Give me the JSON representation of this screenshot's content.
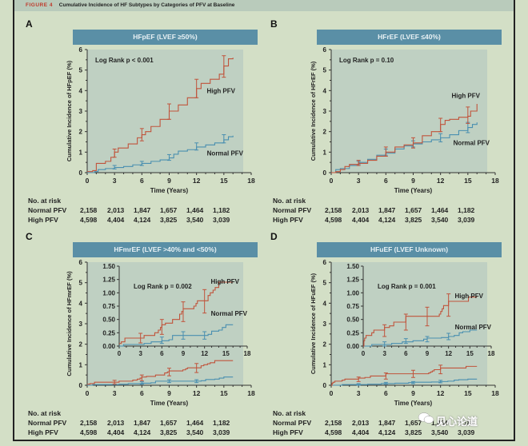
{
  "figure": {
    "label": "FIGURE 4",
    "title": "Cumulative Incidence of HF Subtypes by Categories of PFV at Baseline"
  },
  "colors": {
    "high_pfv": "#c0543c",
    "normal_pfv": "#4a8fb0",
    "plot_bg": "#bfd0c2",
    "title_bar": "#5a8fa6"
  },
  "risk_table": {
    "heading": "No. at risk",
    "times": [
      0,
      3,
      6,
      9,
      12,
      15
    ],
    "rows": [
      {
        "label": "Normal PFV",
        "values": [
          "2,158",
          "2,013",
          "1,847",
          "1,657",
          "1,464",
          "1,182"
        ]
      },
      {
        "label": "High PFV",
        "values": [
          "4,598",
          "4,404",
          "4,124",
          "3,825",
          "3,540",
          "3,039"
        ]
      }
    ]
  },
  "watermark": "见心论道",
  "chart_data": [
    {
      "panel": "A",
      "type": "line",
      "title": "HFpEF (LVEF ≥50%)",
      "xlabel": "Time (Years)",
      "ylabel": "Cumulative Incidence of HFpEF (%)",
      "xlim": [
        0,
        18
      ],
      "ylim": [
        0,
        6
      ],
      "xticks": [
        0,
        3,
        6,
        9,
        12,
        15,
        18
      ],
      "yticks": [
        0,
        1,
        2,
        3,
        4,
        5,
        6
      ],
      "annotation": "Log Rank p < 0.001",
      "labels": {
        "high": "High PFV",
        "normal": "Normal PFV"
      },
      "series": [
        {
          "name": "High PFV",
          "x": [
            0,
            0.6,
            1.0,
            2.0,
            2.6,
            3.0,
            3.4,
            4.5,
            5.5,
            6.0,
            6.4,
            7.0,
            8.0,
            9.0,
            10.0,
            11.0,
            12.0,
            12.5,
            13.5,
            14.5,
            15.0,
            15.5,
            16.0
          ],
          "y": [
            0.05,
            0.1,
            0.45,
            0.55,
            0.75,
            1.0,
            1.2,
            1.4,
            1.7,
            1.85,
            2.0,
            2.25,
            2.6,
            3.0,
            3.3,
            3.65,
            4.1,
            4.35,
            4.55,
            4.8,
            5.2,
            5.55,
            5.6
          ],
          "errors": [
            {
              "x": 3,
              "lo": 0.75,
              "hi": 1.15
            },
            {
              "x": 6,
              "lo": 1.55,
              "hi": 2.15
            },
            {
              "x": 9,
              "lo": 2.6,
              "hi": 3.35
            },
            {
              "x": 12,
              "lo": 3.65,
              "hi": 4.55
            },
            {
              "x": 15,
              "lo": 4.65,
              "hi": 5.7
            }
          ]
        },
        {
          "name": "Normal PFV",
          "x": [
            0,
            0.8,
            1.2,
            2.0,
            3.0,
            4.0,
            5.0,
            6.0,
            7.0,
            8.0,
            9.0,
            9.5,
            10.0,
            11.0,
            12.0,
            13.0,
            14.0,
            15.0,
            15.5,
            16.0
          ],
          "y": [
            0,
            0.05,
            0.15,
            0.2,
            0.25,
            0.3,
            0.38,
            0.45,
            0.55,
            0.62,
            0.72,
            0.9,
            1.05,
            1.12,
            1.25,
            1.35,
            1.45,
            1.6,
            1.75,
            1.8
          ],
          "errors": [
            {
              "x": 3,
              "lo": 0.18,
              "hi": 0.35
            },
            {
              "x": 6,
              "lo": 0.35,
              "hi": 0.55
            },
            {
              "x": 9,
              "lo": 0.6,
              "hi": 0.88
            },
            {
              "x": 12,
              "lo": 1.1,
              "hi": 1.45
            },
            {
              "x": 15,
              "lo": 1.45,
              "hi": 1.85
            }
          ]
        }
      ]
    },
    {
      "panel": "B",
      "type": "line",
      "title": "HFrEF (LVEF ≤40%)",
      "xlabel": "Time (Years)",
      "ylabel": "Cumulative Incidence of HFrEF (%)",
      "xlim": [
        0,
        18
      ],
      "ylim": [
        0,
        6
      ],
      "xticks": [
        0,
        3,
        6,
        9,
        12,
        15,
        18
      ],
      "yticks": [
        0,
        1,
        2,
        3,
        4,
        5,
        6
      ],
      "annotation": "Log Rank p = 0.10",
      "labels": {
        "high": "High PFV",
        "normal": "Normal PFV"
      },
      "series": [
        {
          "name": "High PFV",
          "x": [
            0,
            0.5,
            1.0,
            1.5,
            2.0,
            3.0,
            3.5,
            4.0,
            5.0,
            6.0,
            7.0,
            8.0,
            9.0,
            10.0,
            11.0,
            12.0,
            12.5,
            13.0,
            14.0,
            15.0,
            15.3,
            16.0
          ],
          "y": [
            0,
            0.05,
            0.15,
            0.3,
            0.4,
            0.45,
            0.45,
            0.6,
            0.8,
            1.0,
            1.25,
            1.35,
            1.45,
            1.8,
            2.0,
            2.35,
            2.55,
            2.6,
            2.7,
            2.75,
            3.0,
            3.35
          ],
          "errors": [
            {
              "x": 3,
              "lo": 0.35,
              "hi": 0.6
            },
            {
              "x": 6,
              "lo": 0.8,
              "hi": 1.25
            },
            {
              "x": 9,
              "lo": 1.2,
              "hi": 1.7
            },
            {
              "x": 12,
              "lo": 2.0,
              "hi": 2.65
            },
            {
              "x": 15,
              "lo": 2.4,
              "hi": 3.2
            }
          ]
        },
        {
          "name": "Normal PFV",
          "x": [
            0,
            0.5,
            1.0,
            2.0,
            3.0,
            4.0,
            5.0,
            6.0,
            7.0,
            8.0,
            9.0,
            10.0,
            11.0,
            12.0,
            13.0,
            14.0,
            15.0,
            15.5,
            16.0
          ],
          "y": [
            0,
            0.15,
            0.2,
            0.35,
            0.5,
            0.65,
            0.85,
            0.95,
            1.15,
            1.3,
            1.4,
            1.5,
            1.6,
            1.7,
            1.85,
            2.05,
            2.2,
            2.35,
            2.45
          ],
          "errors": [
            {
              "x": 3,
              "lo": 0.4,
              "hi": 0.55
            },
            {
              "x": 6,
              "lo": 0.85,
              "hi": 1.15
            },
            {
              "x": 9,
              "lo": 1.25,
              "hi": 1.55
            },
            {
              "x": 12,
              "lo": 1.5,
              "hi": 1.9
            },
            {
              "x": 15,
              "lo": 1.95,
              "hi": 2.45
            }
          ]
        }
      ]
    },
    {
      "panel": "C",
      "type": "line",
      "title": "HFmrEF (LVEF >40% and <50%)",
      "xlabel": "Time (Years)",
      "ylabel": "Cumulative Incidence of HFmrEF (%)",
      "xlim": [
        0,
        18
      ],
      "ylim": [
        0,
        6
      ],
      "xticks": [
        0,
        3,
        6,
        9,
        12,
        15,
        18
      ],
      "yticks": [
        0,
        1,
        2,
        3,
        4,
        5,
        6
      ],
      "annotation": "Log Rank p = 0.002",
      "labels": {
        "high": "High PFV",
        "normal": "Normal PFV"
      },
      "inset": {
        "ylim": [
          0,
          1.5
        ],
        "yticks": [
          "0.00",
          "0.25",
          "0.50",
          "0.75",
          "1.00",
          "1.25",
          "1.50"
        ],
        "xticks": [
          0,
          3,
          6,
          9,
          12,
          15,
          18
        ]
      },
      "series": [
        {
          "name": "High PFV",
          "x": [
            0,
            0.3,
            0.8,
            3.0,
            3.5,
            5.0,
            5.5,
            5.8,
            6.0,
            6.5,
            7.5,
            8.5,
            8.8,
            9.0,
            10.5,
            10.8,
            11.0,
            12.0,
            12.5,
            12.8,
            13.2,
            13.5,
            14.0,
            16.0
          ],
          "y": [
            0.05,
            0.08,
            0.15,
            0.15,
            0.2,
            0.25,
            0.3,
            0.35,
            0.4,
            0.43,
            0.5,
            0.6,
            0.65,
            0.7,
            0.75,
            0.8,
            0.85,
            0.85,
            0.95,
            1.0,
            1.05,
            1.1,
            1.2,
            1.2
          ],
          "errors": [
            {
              "x": 3,
              "lo": 0.06,
              "hi": 0.24
            },
            {
              "x": 6,
              "lo": 0.22,
              "hi": 0.5
            },
            {
              "x": 9,
              "lo": 0.46,
              "hi": 0.83
            },
            {
              "x": 12,
              "lo": 0.62,
              "hi": 1.06
            }
          ]
        },
        {
          "name": "Normal PFV",
          "x": [
            0,
            0.6,
            3.5,
            4.5,
            6.0,
            7.0,
            7.5,
            12.0,
            12.5,
            13.0,
            14.0,
            14.5,
            15.0,
            16.0
          ],
          "y": [
            0,
            0.03,
            0.05,
            0.08,
            0.1,
            0.12,
            0.2,
            0.2,
            0.22,
            0.28,
            0.3,
            0.35,
            0.4,
            0.4
          ],
          "errors": [
            {
              "x": 6,
              "lo": 0.05,
              "hi": 0.17
            },
            {
              "x": 9,
              "lo": 0.13,
              "hi": 0.27
            },
            {
              "x": 12,
              "lo": 0.13,
              "hi": 0.27
            }
          ]
        }
      ]
    },
    {
      "panel": "D",
      "type": "line",
      "title": "HFuEF (LVEF Unknown)",
      "xlabel": "Time (Years)",
      "ylabel": "Cumulative Incidence of HFuEF (%)",
      "xlim": [
        0,
        18
      ],
      "ylim": [
        0,
        6
      ],
      "xticks": [
        0,
        3,
        6,
        9,
        12,
        15,
        18
      ],
      "yticks": [
        0,
        1,
        2,
        3,
        4,
        5,
        6
      ],
      "annotation": "Log Rank p = 0.001",
      "labels": {
        "high": "High PFV",
        "normal": "Normal PFV"
      },
      "inset": {
        "ylim": [
          0,
          1.5
        ],
        "yticks": [
          "0.00",
          "0.25",
          "0.50",
          "0.75",
          "1.00",
          "1.25",
          "1.50"
        ],
        "xticks": [
          0,
          3,
          6,
          9,
          12,
          15,
          18
        ]
      },
      "series": [
        {
          "name": "High PFV",
          "x": [
            0,
            0.1,
            0.2,
            0.4,
            1.2,
            1.5,
            3.0,
            3.7,
            4.3,
            6.0,
            10.7,
            10.9,
            11.1,
            11.3,
            12.0,
            14.8,
            16.0
          ],
          "y": [
            0,
            0.1,
            0.15,
            0.2,
            0.25,
            0.3,
            0.35,
            0.38,
            0.45,
            0.56,
            0.6,
            0.65,
            0.7,
            0.76,
            0.84,
            0.92,
            0.92
          ],
          "errors": [
            {
              "x": 3,
              "lo": 0.18,
              "hi": 0.4
            },
            {
              "x": 6,
              "lo": 0.3,
              "hi": 0.6
            },
            {
              "x": 9,
              "lo": 0.38,
              "hi": 0.73
            },
            {
              "x": 12,
              "lo": 0.56,
              "hi": 0.98
            }
          ]
        },
        {
          "name": "Normal PFV",
          "x": [
            0,
            1.2,
            4.0,
            5.5,
            7.0,
            8.5,
            9.0,
            11.0,
            12.0,
            12.8,
            13.5,
            14.0,
            15.0,
            16.0
          ],
          "y": [
            0,
            0.03,
            0.05,
            0.08,
            0.1,
            0.13,
            0.15,
            0.16,
            0.18,
            0.2,
            0.25,
            0.27,
            0.3,
            0.3
          ],
          "errors": [
            {
              "x": 3,
              "lo": 0.0,
              "hi": 0.08
            },
            {
              "x": 6,
              "lo": 0.05,
              "hi": 0.14
            },
            {
              "x": 9,
              "lo": 0.08,
              "hi": 0.18
            },
            {
              "x": 12,
              "lo": 0.12,
              "hi": 0.24
            }
          ]
        }
      ]
    }
  ]
}
